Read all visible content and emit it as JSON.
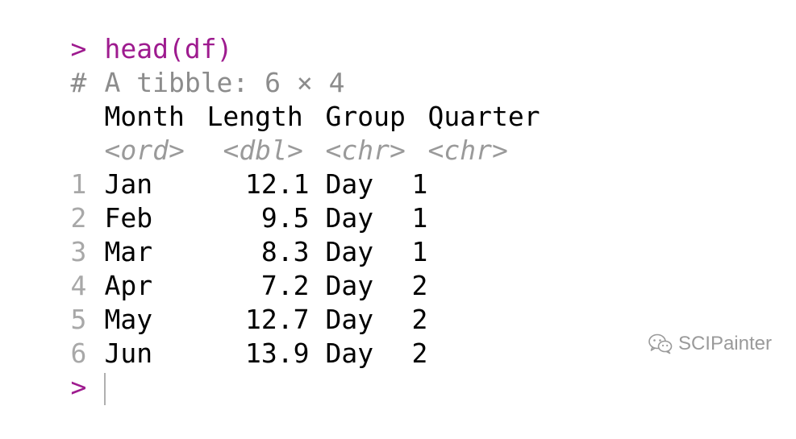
{
  "console": {
    "prompt_symbol": ">",
    "command": "head(df)",
    "comment_symbol": "#",
    "tibble_info": "A tibble: 6 × 4",
    "columns": [
      "Month",
      "Length",
      "Group",
      "Quarter"
    ],
    "column_types": [
      "<ord>",
      "<dbl>",
      "<chr>",
      "<chr>"
    ],
    "rows": [
      {
        "index": "1",
        "month": "Jan",
        "length": "12.1",
        "group": "Day",
        "quarter": "1"
      },
      {
        "index": "2",
        "month": "Feb",
        "length": "9.5",
        "group": "Day",
        "quarter": "1"
      },
      {
        "index": "3",
        "month": "Mar",
        "length": "8.3",
        "group": "Day",
        "quarter": "1"
      },
      {
        "index": "4",
        "month": "Apr",
        "length": "7.2",
        "group": "Day",
        "quarter": "2"
      },
      {
        "index": "5",
        "month": "May",
        "length": "12.7",
        "group": "Day",
        "quarter": "2"
      },
      {
        "index": "6",
        "month": "Jun",
        "length": "13.9",
        "group": "Day",
        "quarter": "2"
      }
    ],
    "input_prompt": ">"
  },
  "watermark": {
    "text": "SCIPainter",
    "icon": "wechat-icon"
  },
  "colors": {
    "prompt": "#9e1b8f",
    "comment": "#8c8c8c",
    "row_index": "#a8a8a8",
    "type_hint": "#9a9a9a",
    "watermark": "#9a9a9a"
  }
}
